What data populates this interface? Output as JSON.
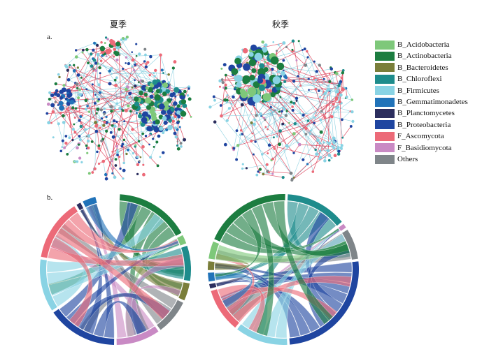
{
  "titles": {
    "summer": "夏季",
    "autumn": "秋季"
  },
  "panel_labels": {
    "network": "a.",
    "chord": "b."
  },
  "legend": [
    {
      "label": "B_Acidobacteria",
      "color": "#7ec87a"
    },
    {
      "label": "B_Actinobacteria",
      "color": "#1c7d40"
    },
    {
      "label": "B_Bacteroidetes",
      "color": "#7a7e3a"
    },
    {
      "label": "B_Chloroflexi",
      "color": "#1e8c8c"
    },
    {
      "label": "B_Firmicutes",
      "color": "#89d3e4"
    },
    {
      "label": "B_Gemmatimonadetes",
      "color": "#2173b9"
    },
    {
      "label": "B_Planctomycetes",
      "color": "#2c2e5e"
    },
    {
      "label": "B_Proteobacteria",
      "color": "#1f45a0"
    },
    {
      "label": "F_Ascomycota",
      "color": "#ec6a78"
    },
    {
      "label": "F_Basidiomycota",
      "color": "#c98ac4"
    },
    {
      "label": "Others",
      "color": "#7f8589"
    }
  ],
  "edge_colors": {
    "positive": "#d9304b",
    "negative": "#6cc4d8"
  },
  "chord_summer": [
    {
      "group": "B_Actinobacteria",
      "share": 0.17
    },
    {
      "group": "B_Acidobacteria",
      "share": 0.02
    },
    {
      "group": "B_Chloroflexi",
      "share": 0.08
    },
    {
      "group": "B_Bacteroidetes",
      "share": 0.04
    },
    {
      "group": "Others",
      "share": 0.08
    },
    {
      "group": "F_Basidiomycota",
      "share": 0.1
    },
    {
      "group": "B_Proteobacteria",
      "share": 0.16
    },
    {
      "group": "B_Firmicutes",
      "share": 0.12
    },
    {
      "group": "F_Ascomycota",
      "share": 0.14
    },
    {
      "group": "B_Planctomycetes",
      "share": 0.01
    },
    {
      "group": "B_Gemmatimonadetes",
      "share": 0.03
    }
  ],
  "chord_autumn": [
    {
      "group": "B_Chloroflexi",
      "share": 0.14
    },
    {
      "group": "F_Basidiomycota",
      "share": 0.01
    },
    {
      "group": "Others",
      "share": 0.07
    },
    {
      "group": "B_Proteobacteria",
      "share": 0.27
    },
    {
      "group": "B_Firmicutes",
      "share": 0.12
    },
    {
      "group": "F_Ascomycota",
      "share": 0.1
    },
    {
      "group": "B_Planctomycetes",
      "share": 0.01
    },
    {
      "group": "B_Gemmatimonadetes",
      "share": 0.02
    },
    {
      "group": "B_Bacteroidetes",
      "share": 0.02
    },
    {
      "group": "B_Acidobacteria",
      "share": 0.04
    },
    {
      "group": "B_Actinobacteria",
      "share": 0.2
    }
  ]
}
